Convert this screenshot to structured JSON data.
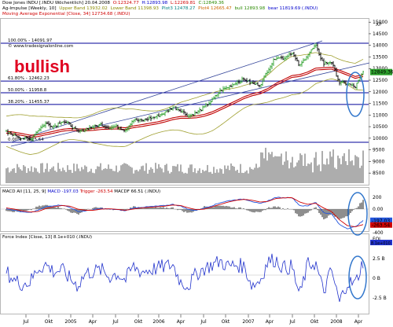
{
  "header": {
    "line1": {
      "symbol": "Dow Jones INDU [.INDU Wöchentlich] 20.04.2008",
      "o": "O:12324.77",
      "h": "H:12893.98",
      "l": "L:12269.81",
      "c": "C:12849.36"
    },
    "line2": {
      "prefix": "Ag-Impulse [Weekly, 10]",
      "upper": "Upper Band 13932.02",
      "lower": "Lower Band 11398.93",
      "plot3": "Plot3 12478.27",
      "plot4": "Plot4 12665.47",
      "bull": "bull 12893.98",
      "bear": "bear 11819.69 (.INDU)"
    },
    "line3": "Moving Average Exponential [Close, 34] 12734.68 (.INDU)",
    "macd_label": {
      "prefix": "MACD All [11, 25, 9]",
      "macd": "MACD -197.03",
      "trigger": "Trigger -263.54",
      "tail": "MACDF 66.51 (.INDU)"
    },
    "force_label": "Force Index [Close, 13] 8.1e+010 (.INDU)"
  },
  "watermark": "© www.tradesignalonline.com",
  "annotation": "bullish",
  "fib_levels": [
    {
      "label": "100.00% - 14091.97",
      "value": 14091.97
    },
    {
      "label": "61.80% - 12462.23",
      "value": 12462.23
    },
    {
      "label": "50.00% - 11958.8",
      "value": 11958.8
    },
    {
      "label": "38.20% - 11455.37",
      "value": 11455.37
    },
    {
      "label": "0.00% - 9825.64",
      "value": 9825.64
    }
  ],
  "price_axis": {
    "unit": "XP",
    "ticks": [
      "15000",
      "14500",
      "14000",
      "13500",
      "13000",
      "12500",
      "12000",
      "11500",
      "11000",
      "10500",
      "10000",
      "9500",
      "9000",
      "8500"
    ],
    "current": "12849.36"
  },
  "macd_axis": {
    "ticks": [
      "200",
      "0.00",
      "-200",
      "-400"
    ],
    "macd_val": "-197.03",
    "trig_val": "-263.54"
  },
  "force_axis": {
    "ticks": [
      "FOI",
      "2.5 B",
      "0 B",
      "-2.5 B"
    ],
    "current": "8.1e+010"
  },
  "time_axis": [
    "Jul",
    "Okt",
    "2005",
    "Apr",
    "Jul",
    "Okt",
    "2006",
    "Apr",
    "Jul",
    "Okt",
    "2007",
    "Apr",
    "Jul",
    "Okt",
    "2008",
    "Apr"
  ],
  "colors": {
    "up": "#2ca02c",
    "down": "#000000",
    "ema": "#c00000",
    "band": "#a0a030",
    "fib": "#000099",
    "macd": "#2255dd",
    "trigger": "#d00000",
    "force": "#2233cc",
    "circle": "#3377cc",
    "bullish": "#e00020",
    "volume": "#999999"
  },
  "chart_data": {
    "type": "line",
    "title": "Dow Jones INDU [.INDU Wöchentlich] 20.04.2008",
    "x": [
      "2004-07",
      "2004-08",
      "2004-09",
      "2004-10",
      "2004-11",
      "2004-12",
      "2005-01",
      "2005-02",
      "2005-03",
      "2005-04",
      "2005-05",
      "2005-06",
      "2005-07",
      "2005-08",
      "2005-09",
      "2005-10",
      "2005-11",
      "2005-12",
      "2006-01",
      "2006-02",
      "2006-03",
      "2006-04",
      "2006-05",
      "2006-06",
      "2006-07",
      "2006-08",
      "2006-09",
      "2006-10",
      "2006-11",
      "2006-12",
      "2007-01",
      "2007-02",
      "2007-03",
      "2007-04",
      "2007-05",
      "2007-06",
      "2007-07",
      "2007-08",
      "2007-09",
      "2007-10",
      "2007-11",
      "2007-12",
      "2008-01",
      "2008-02",
      "2008-03",
      "2008-04"
    ],
    "series": [
      {
        "name": "Dow Jones INDU",
        "values": [
          10250,
          10150,
          10000,
          9950,
          10350,
          10650,
          10500,
          10750,
          10600,
          10250,
          10400,
          10500,
          10600,
          10450,
          10500,
          10350,
          10800,
          10750,
          10850,
          10950,
          11100,
          11350,
          11200,
          10950,
          11100,
          11350,
          11650,
          12050,
          12200,
          12400,
          12550,
          12350,
          12300,
          12950,
          13500,
          13450,
          13700,
          13100,
          13600,
          14000,
          13200,
          13300,
          12400,
          12350,
          12200,
          12849
        ]
      },
      {
        "name": "EMA 34",
        "values": [
          10300,
          10260,
          10200,
          10130,
          10150,
          10230,
          10300,
          10380,
          10420,
          10400,
          10400,
          10420,
          10460,
          10470,
          10480,
          10450,
          10530,
          10580,
          10640,
          10700,
          10780,
          10880,
          10940,
          10940,
          10960,
          11030,
          11140,
          11300,
          11460,
          11620,
          11790,
          11910,
          11990,
          12140,
          12360,
          12530,
          12700,
          12740,
          12850,
          13020,
          13040,
          13060,
          12930,
          12800,
          12660,
          12735
        ]
      }
    ],
    "fib_levels": [
      14091.97,
      12462.23,
      11958.8,
      11455.37,
      9825.64
    ],
    "ylim": [
      8500,
      15000
    ],
    "macd": [
      10,
      -20,
      -50,
      -60,
      -20,
      40,
      60,
      70,
      30,
      -40,
      -30,
      -10,
      10,
      0,
      -10,
      -30,
      20,
      30,
      40,
      50,
      60,
      80,
      50,
      -10,
      -20,
      20,
      60,
      110,
      140,
      160,
      170,
      130,
      90,
      140,
      200,
      190,
      200,
      60,
      50,
      120,
      -60,
      -80,
      -260,
      -330,
      -300,
      -197
    ],
    "trigger": [
      20,
      0,
      -30,
      -50,
      -40,
      10,
      40,
      60,
      50,
      0,
      -20,
      -20,
      0,
      5,
      -5,
      -20,
      0,
      20,
      30,
      40,
      50,
      70,
      60,
      20,
      -10,
      0,
      40,
      80,
      120,
      150,
      165,
      150,
      120,
      130,
      180,
      190,
      195,
      120,
      80,
      100,
      20,
      -40,
      -180,
      -280,
      -300,
      -263
    ],
    "force": [
      0.2,
      -0.3,
      -0.5,
      -0.4,
      0.4,
      0.6,
      0.2,
      0.3,
      -0.2,
      -0.6,
      0.1,
      0.2,
      0.3,
      -0.1,
      0.1,
      -0.3,
      0.5,
      0.2,
      0.3,
      0.4,
      0.5,
      0.6,
      -0.4,
      -0.6,
      0.1,
      0.4,
      0.6,
      0.8,
      0.5,
      0.6,
      0.5,
      -0.6,
      -0.3,
      0.8,
      0.9,
      0.4,
      0.5,
      -1.2,
      0.6,
      0.7,
      -1.0,
      0.3,
      -1.6,
      -0.4,
      -0.5,
      0.8
    ]
  }
}
